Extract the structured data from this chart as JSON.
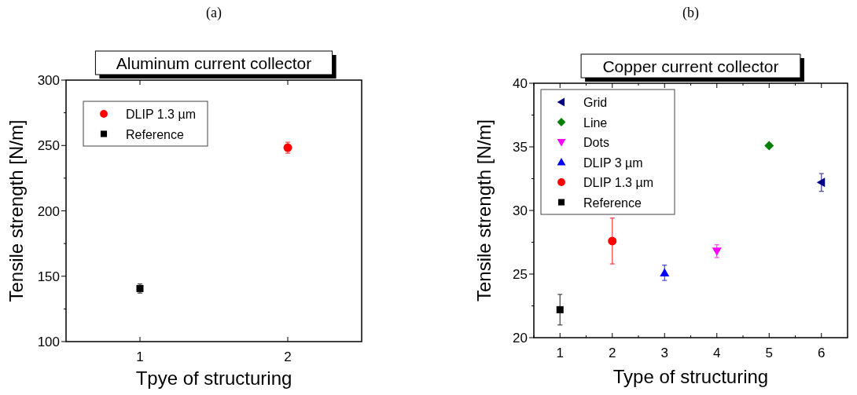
{
  "chart_data": [
    {
      "type": "scatter",
      "title": "Aluminum current collector",
      "annotations": [
        "(a)"
      ],
      "xlabel": "Tpye of structuring",
      "ylabel": "Tensile strength [N/m]",
      "xlim": [
        0.5,
        2.5
      ],
      "xticks": [
        1,
        2
      ],
      "ylim": [
        100,
        300
      ],
      "yticks": [
        100,
        {
          "value": 125,
          "label": null
        },
        150,
        {
          "value": 175,
          "label": null
        },
        200,
        {
          "value": 225,
          "label": null
        },
        250,
        {
          "value": 275,
          "label": null
        },
        300
      ],
      "legend": "top left",
      "grid": false,
      "series": [
        {
          "name": "DLIP 1.3 µm",
          "color": "#ff0000",
          "marker": "circle",
          "x": [
            2
          ],
          "values": [
            248.3
          ],
          "errors": [
            4.2
          ]
        },
        {
          "name": "Reference",
          "color": "#000000",
          "marker": "square",
          "x": [
            1
          ],
          "values": [
            140.6
          ],
          "errors": [
            3.5
          ]
        }
      ]
    },
    {
      "type": "scatter",
      "title": "Copper current collector",
      "annotations": [
        "(b)"
      ],
      "xlabel": "Type of structuring",
      "ylabel": "Tensile strength [N/m]",
      "xlim": [
        0.5,
        6.5
      ],
      "xticks": [
        {
          "value": 0.5,
          "label": null
        },
        1,
        {
          "value": 1.5,
          "label": null
        },
        2,
        {
          "value": 2.5,
          "label": null
        },
        3,
        {
          "value": 3.5,
          "label": null
        },
        4,
        {
          "value": 4.5,
          "label": null
        },
        5,
        {
          "value": 5.5,
          "label": null
        },
        6
      ],
      "ylim": [
        20,
        40
      ],
      "yticks": [
        20,
        {
          "value": 22.5,
          "label": null
        },
        25,
        {
          "value": 27.5,
          "label": null
        },
        30,
        {
          "value": 32.5,
          "label": null
        },
        35,
        {
          "value": 37.5,
          "label": null
        },
        40
      ],
      "legend": "top left",
      "grid": false,
      "series": [
        {
          "name": "Grid",
          "color": "#000080",
          "marker": "triangle-left",
          "x": [
            6
          ],
          "values": [
            32.2
          ],
          "errors": [
            0.7
          ]
        },
        {
          "name": "Line",
          "color": "#008000",
          "marker": "diamond",
          "x": [
            5
          ],
          "values": [
            35.1
          ],
          "errors": [
            0.15
          ]
        },
        {
          "name": "Dots",
          "color": "#ff00ff",
          "marker": "triangle-down",
          "x": [
            4
          ],
          "values": [
            26.8
          ],
          "errors": [
            0.5
          ]
        },
        {
          "name": "DLIP 3 µm",
          "color": "#0000ff",
          "marker": "triangle",
          "x": [
            3
          ],
          "values": [
            25.1
          ],
          "errors": [
            0.6
          ]
        },
        {
          "name": "DLIP 1.3 µm",
          "color": "#ff0000",
          "marker": "circle",
          "x": [
            2
          ],
          "values": [
            27.6
          ],
          "errors": [
            1.8
          ]
        },
        {
          "name": "Reference",
          "color": "#000000",
          "marker": "square",
          "x": [
            1
          ],
          "values": [
            22.2
          ],
          "errors": [
            1.2
          ]
        }
      ]
    }
  ]
}
